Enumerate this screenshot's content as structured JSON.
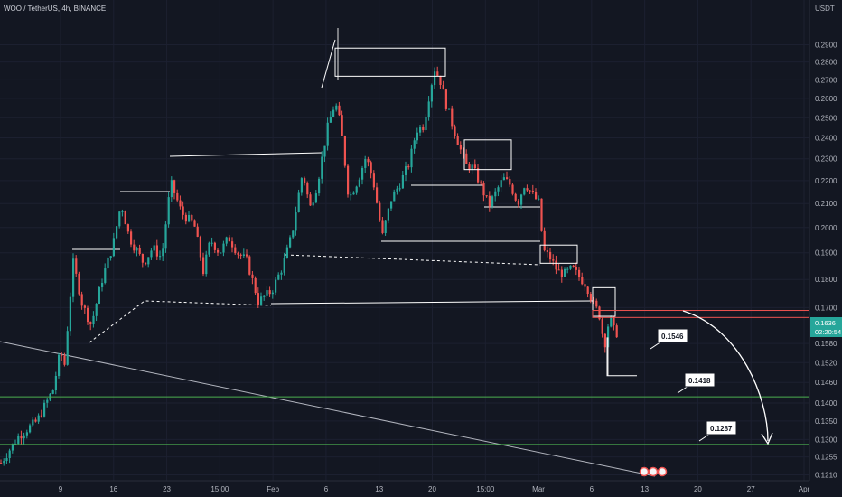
{
  "header": {
    "symbol": "WOO / TetherUS, 4h, BINANCE"
  },
  "axis": {
    "currency": "USDT"
  },
  "price_badge": {
    "price": "0.1636",
    "countdown": "02:20:54"
  },
  "colors": {
    "background": "#131722",
    "up": "#26a69a",
    "down": "#ef5350",
    "badge": "#26a69a",
    "green_line": "#4caf50",
    "red_line": "#ef5350",
    "drawing": "#d9d9d9"
  },
  "chart_data": {
    "type": "candlestick",
    "y_scale": "log",
    "ylim": [
      0.12,
      0.305
    ],
    "y_ticks": [
      "0.2900",
      "0.2800",
      "0.2700",
      "0.2600",
      "0.2500",
      "0.2400",
      "0.2300",
      "0.2200",
      "0.2100",
      "0.2000",
      "0.1900",
      "0.1800",
      "0.1700",
      "0.1580",
      "0.1520",
      "0.1460",
      "0.1400",
      "0.1350",
      "0.1300",
      "0.1255",
      "0.1210"
    ],
    "x_ticks": [
      "9",
      "16",
      "23",
      "15:00",
      "Feb",
      "6",
      "13",
      "20",
      "15:00",
      "Mar",
      "6",
      "13",
      "20",
      "27",
      "Apr"
    ],
    "price_path": [
      [
        0,
        0.124
      ],
      [
        20,
        0.131
      ],
      [
        40,
        0.135
      ],
      [
        58,
        0.144
      ],
      [
        66,
        0.156
      ],
      [
        70,
        0.15
      ],
      [
        80,
        0.186
      ],
      [
        90,
        0.171
      ],
      [
        100,
        0.164
      ],
      [
        112,
        0.18
      ],
      [
        124,
        0.193
      ],
      [
        133,
        0.21
      ],
      [
        142,
        0.196
      ],
      [
        158,
        0.186
      ],
      [
        168,
        0.192
      ],
      [
        178,
        0.188
      ],
      [
        188,
        0.219
      ],
      [
        200,
        0.206
      ],
      [
        214,
        0.201
      ],
      [
        224,
        0.183
      ],
      [
        232,
        0.195
      ],
      [
        242,
        0.19
      ],
      [
        252,
        0.196
      ],
      [
        262,
        0.19
      ],
      [
        272,
        0.187
      ],
      [
        285,
        0.172
      ],
      [
        300,
        0.176
      ],
      [
        312,
        0.185
      ],
      [
        322,
        0.197
      ],
      [
        334,
        0.224
      ],
      [
        342,
        0.208
      ],
      [
        350,
        0.218
      ],
      [
        356,
        0.232
      ],
      [
        362,
        0.246
      ],
      [
        370,
        0.258
      ],
      [
        376,
        0.246
      ],
      [
        385,
        0.212
      ],
      [
        395,
        0.22
      ],
      [
        404,
        0.231
      ],
      [
        412,
        0.22
      ],
      [
        422,
        0.196
      ],
      [
        432,
        0.212
      ],
      [
        442,
        0.219
      ],
      [
        452,
        0.228
      ],
      [
        460,
        0.244
      ],
      [
        468,
        0.246
      ],
      [
        474,
        0.262
      ],
      [
        480,
        0.276
      ],
      [
        486,
        0.27
      ],
      [
        492,
        0.258
      ],
      [
        500,
        0.246
      ],
      [
        508,
        0.235
      ],
      [
        515,
        0.227
      ],
      [
        522,
        0.226
      ],
      [
        530,
        0.219
      ],
      [
        540,
        0.209
      ],
      [
        548,
        0.215
      ],
      [
        556,
        0.221
      ],
      [
        564,
        0.218
      ],
      [
        572,
        0.21
      ],
      [
        580,
        0.219
      ],
      [
        588,
        0.214
      ],
      [
        596,
        0.21
      ],
      [
        600,
        0.191
      ],
      [
        608,
        0.188
      ],
      [
        616,
        0.183
      ],
      [
        624,
        0.182
      ],
      [
        632,
        0.184
      ],
      [
        640,
        0.181
      ],
      [
        648,
        0.178
      ],
      [
        656,
        0.171
      ],
      [
        662,
        0.168
      ],
      [
        668,
        0.157
      ],
      [
        672,
        0.164
      ],
      [
        676,
        0.166
      ],
      [
        680,
        0.16
      ],
      [
        684,
        0.1636
      ]
    ],
    "zones": [
      {
        "from": [
          371,
          0.288
        ],
        "to": [
          493,
          0.272
        ]
      },
      {
        "from": [
          514,
          0.239
        ],
        "to": [
          566,
          0.225
        ]
      },
      {
        "from": [
          598,
          0.193
        ],
        "to": [
          639,
          0.186
        ]
      },
      {
        "from": [
          656,
          0.177
        ],
        "to": [
          681,
          0.167
        ]
      }
    ],
    "support_levels": [
      0.1418,
      0.1287
    ],
    "resistance_band": [
      0.169,
      0.1666
    ],
    "targets": [
      "0.1546",
      "0.1418",
      "0.1287"
    ]
  }
}
